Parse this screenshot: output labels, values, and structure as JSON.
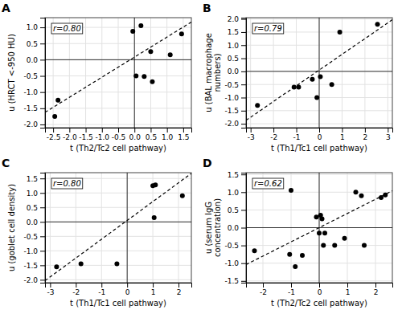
{
  "chart_data": [
    {
      "type": "scatter",
      "title": "A",
      "annotation": "r=0.80",
      "xlabel": "t (Th2/Tc2 cell pathway)",
      "ylabel": "u (HRCT <-950 HU)",
      "xlim": [
        -2.75,
        1.75
      ],
      "ylim": [
        -2.1,
        1.3
      ],
      "xticks": [
        -2.5,
        {
          "value": -2,
          "label": "-2.0"
        },
        -1.5,
        {
          "value": -1,
          "label": "-1.0"
        },
        -0.5,
        {
          "value": 0,
          "label": "0.0"
        },
        0.5,
        {
          "value": 1,
          "label": "1.0"
        },
        1.5
      ],
      "yticks": [
        {
          "value": -2,
          "label": "-2.0"
        },
        -1.5,
        {
          "value": -1,
          "label": "-1.0"
        },
        -0.5,
        {
          "value": 0,
          "label": "0.0"
        },
        0.5,
        {
          "value": 1,
          "label": "1.0"
        }
      ],
      "grid": true,
      "hlines": [
        0
      ],
      "vlines": [
        0
      ],
      "series": [
        {
          "type": "scatter",
          "marker": "circle",
          "color": "#000000",
          "x": [
            -2.45,
            -2.35,
            -0.05,
            0.05,
            0.3,
            0.2,
            0.5,
            0.55,
            1.1,
            1.45
          ],
          "values": [
            -1.75,
            -1.25,
            0.88,
            -0.5,
            -0.52,
            1.05,
            0.25,
            -0.68,
            0.15,
            0.8
          ]
        },
        {
          "type": "line",
          "line_style": "dashed",
          "color": "#000000",
          "x": [
            -2.75,
            1.75
          ],
          "values": [
            -1.625,
            1.165
          ]
        }
      ]
    },
    {
      "type": "scatter",
      "title": "B",
      "annotation": "r=0.79",
      "xlabel": "t (Th1/Tc1 cell pathway)",
      "ylabel": "u (BAL macrophage\nnumbers)",
      "xlim": [
        -3.2,
        3.2
      ],
      "ylim": [
        -2.15,
        2.05
      ],
      "xticks": [
        -3,
        -2,
        -1,
        0,
        1,
        2,
        3
      ],
      "yticks": [
        {
          "value": -2,
          "label": "-2.0"
        },
        -1.5,
        {
          "value": -1,
          "label": "-1.0"
        },
        -0.5,
        {
          "value": 0,
          "label": "0.0"
        },
        0.5,
        {
          "value": 1,
          "label": "1.0"
        },
        1.5,
        {
          "value": 2,
          "label": "2.0"
        }
      ],
      "grid": true,
      "hlines": [
        0
      ],
      "vlines": [
        0
      ],
      "series": [
        {
          "type": "scatter",
          "marker": "circle",
          "color": "#000000",
          "x": [
            -2.7,
            -1.1,
            -0.9,
            -0.3,
            -0.1,
            0.05,
            0.55,
            0.9,
            2.55
          ],
          "values": [
            -1.3,
            -0.6,
            -0.6,
            -0.3,
            -1.0,
            -0.2,
            -0.5,
            1.5,
            1.8
          ]
        },
        {
          "type": "line",
          "line_style": "dashed",
          "color": "#000000",
          "x": [
            -3.2,
            3.2
          ],
          "values": [
            -1.87,
            1.97
          ]
        }
      ]
    },
    {
      "type": "scatter",
      "title": "C",
      "annotation": "r=0.80",
      "xlabel": "t (Th1/Tc1 cell pathway)",
      "ylabel": "u (goblet cell density)",
      "xlim": [
        -3.2,
        2.5
      ],
      "ylim": [
        -2.1,
        1.7
      ],
      "xticks": [
        -3,
        -2,
        -1,
        0,
        1,
        2
      ],
      "yticks": [
        {
          "value": -2,
          "label": "-2.0"
        },
        -1.5,
        {
          "value": -1,
          "label": "-1.0"
        },
        -0.5,
        {
          "value": 0,
          "label": "0.0"
        },
        0.5,
        {
          "value": 1,
          "label": "1.0"
        },
        1.5
      ],
      "grid": true,
      "hlines": [
        0
      ],
      "vlines": [
        0
      ],
      "series": [
        {
          "type": "scatter",
          "marker": "circle",
          "color": "#000000",
          "x": [
            -2.75,
            -1.8,
            -0.4,
            1.0,
            1.1,
            1.05,
            2.15
          ],
          "values": [
            -1.55,
            -1.45,
            -1.45,
            1.25,
            1.28,
            0.15,
            0.9
          ]
        },
        {
          "type": "line",
          "line_style": "dashed",
          "color": "#000000",
          "x": [
            -3.2,
            2.5
          ],
          "values": [
            -2.03,
            1.675
          ]
        }
      ]
    },
    {
      "type": "scatter",
      "title": "D",
      "annotation": "r=0.62",
      "xlabel": "t (Th2/Tc2 cell pathway)",
      "ylabel": "u (serum IgG\nconcentration)",
      "xlim": [
        -2.6,
        2.6
      ],
      "ylim": [
        -1.55,
        1.55
      ],
      "xticks": [
        -2,
        -1,
        0,
        1,
        2
      ],
      "yticks": [
        -1.5,
        {
          "value": -1,
          "label": "-1.0"
        },
        -0.5,
        {
          "value": 0,
          "label": "0.0"
        },
        0.5,
        {
          "value": 1,
          "label": "1.0"
        },
        1.5
      ],
      "grid": true,
      "hlines": [
        0
      ],
      "vlines": [
        0
      ],
      "series": [
        {
          "type": "scatter",
          "marker": "circle",
          "color": "#000000",
          "x": [
            -2.3,
            -1.05,
            -1.0,
            -0.85,
            -0.6,
            -0.1,
            0.0,
            0.05,
            0.1,
            0.15,
            0.2,
            0.55,
            0.9,
            1.3,
            1.5,
            1.6,
            2.2,
            2.35
          ],
          "values": [
            -0.65,
            -0.75,
            1.05,
            -1.1,
            -0.78,
            0.3,
            -0.15,
            0.35,
            0.25,
            -0.5,
            -0.15,
            -0.5,
            -0.3,
            1.0,
            0.9,
            -0.5,
            0.85,
            0.92
          ]
        },
        {
          "type": "line",
          "line_style": "dashed",
          "color": "#000000",
          "x": [
            -2.6,
            2.6
          ],
          "values": [
            -1.04,
            1.04
          ]
        }
      ]
    }
  ]
}
